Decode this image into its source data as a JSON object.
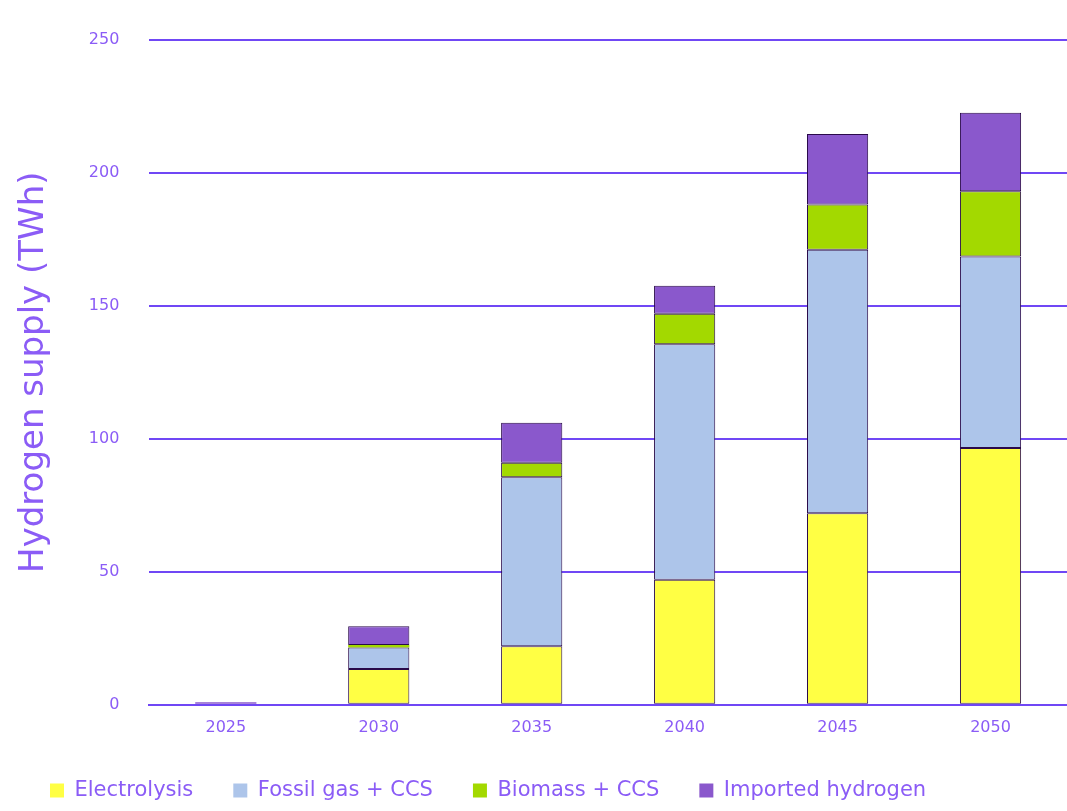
{
  "chart_data": {
    "type": "bar",
    "stacked": true,
    "ylabel": "Hydrogen supply (TWh)",
    "categories": [
      "2025",
      "2030",
      "2035",
      "2040",
      "2045",
      "2050"
    ],
    "series": [
      {
        "name": "Electrolysis",
        "color": "#ffff44",
        "values": [
          0,
          13.5,
          22,
          47,
          72,
          96.5
        ]
      },
      {
        "name": "Fossil gas + CCS",
        "color": "#adc5ea",
        "values": [
          0,
          8,
          63.5,
          88.5,
          99,
          72
        ]
      },
      {
        "name": "Biomass + CCS",
        "color": "#a3d900",
        "values": [
          0,
          1,
          5.5,
          11.5,
          17,
          24.5
        ]
      },
      {
        "name": "Imported hydrogen",
        "color": "#8a58cc",
        "values": [
          1,
          7,
          15,
          10.5,
          26.5,
          29.5
        ]
      }
    ],
    "ylim": [
      0,
      250
    ],
    "yticks": [
      0,
      50,
      100,
      150,
      200,
      250
    ],
    "grid": "y",
    "legend": "bottom"
  }
}
